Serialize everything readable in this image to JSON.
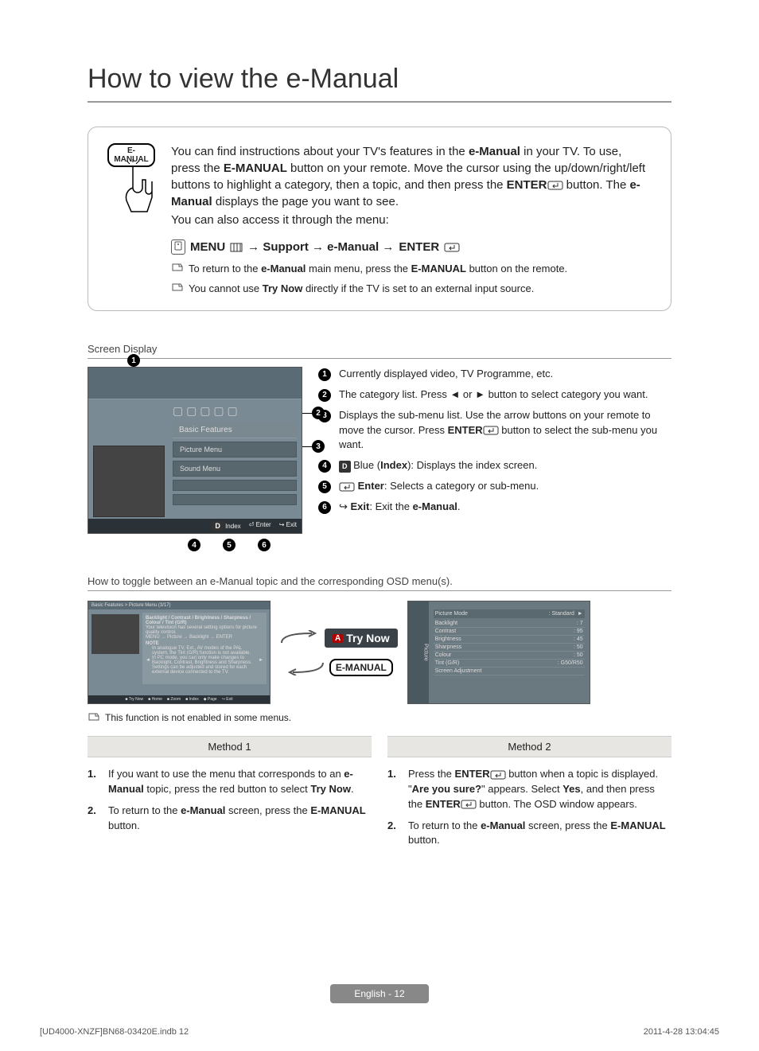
{
  "title": "How to view the e-Manual",
  "remoteBtn": "E-MANUAL",
  "intro": {
    "p1a": "You can find instructions about your TV's features in the ",
    "p1b": "e-Manual",
    "p1c": " in your TV. To use, press the ",
    "p1d": "E-MANUAL",
    "p1e": " button on your remote. Move the cursor using the up/down/right/left buttons to highlight a category, then a topic, and then press the ",
    "p1f": "ENTER",
    "p1g": " button. The ",
    "p1h": "e-Manual",
    "p1i": " displays the page you want to see.",
    "p2": "You can also access it through the menu:"
  },
  "menuPath": {
    "a": "MENU",
    "b": "→ Support → e-Manual → ",
    "c": "ENTER"
  },
  "note1a": "To return to the ",
  "note1b": "e-Manual",
  "note1c": " main menu, press the ",
  "note1d": "E-MANUAL",
  "note1e": " button on the remote.",
  "note2a": "You cannot use ",
  "note2b": "Try Now",
  "note2c": " directly if the TV is set to an external input source.",
  "screenDisplayLabel": "Screen Display",
  "tv": {
    "cat": "Basic Features",
    "sub1": "Picture Menu",
    "sub2": "Sound Menu",
    "ftr1": "Index",
    "ftr2": "Enter",
    "ftr3": "Exit"
  },
  "callouts": {
    "c1": "1",
    "c2": "2",
    "c3": "3",
    "c4": "4",
    "c5": "5",
    "c6": "6"
  },
  "legend": {
    "l1": "Currently displayed video, TV Programme, etc.",
    "l2": "The category list. Press ◄ or ► button to select category you want.",
    "l3a": "Displays the sub-menu list. Use the arrow buttons on your remote to move the cursor. Press ",
    "l3b": "ENTER",
    "l3c": " button to select the sub-menu you want.",
    "l4a": "Blue (",
    "l4b": "Index",
    "l4c": "): Displays the index screen.",
    "l5a": "Enter",
    "l5b": ": Selects a category or sub-menu.",
    "l6a": "Exit",
    "l6b": ": Exit the ",
    "l6c": "e-Manual",
    "l6d": ".",
    "blueD": "D"
  },
  "toggleHeading": "How to toggle between an e-Manual topic and the corresponding OSD menu(s).",
  "miniScreen": {
    "hdr": "Basic Features > Picture Menu (3/17)",
    "line1": "Backlight / Contrast / Brightness / Sharpness / Colour / Tint (G/R)",
    "line2": "Your television has several setting options for picture quality control.",
    "line3": "MENU → Picture → Backlight → ENTER",
    "noteHead": "NOTE",
    "note1": "In analogue TV, Ext., AV modes of the PAL system, the Tint (G/R) function is not available.",
    "note2": "In PC mode, you can only make changes to Backlight, Contrast, Brightness and Sharpness.",
    "note3": "Settings can be adjusted and stored for each external device connected to the TV.",
    "ftr": {
      "a": "Try Now",
      "b": "Home",
      "c": "Zoom",
      "d": "Index",
      "e": "Page",
      "f": "Exit"
    }
  },
  "tryNow": "Try Now",
  "redA": "A",
  "emanualBadge": "E-MANUAL",
  "osd": {
    "side": "Picture",
    "head1": "Picture Mode",
    "head2": ": Standard",
    "arrow": "►",
    "rows": [
      {
        "k": "Backlight",
        "v": ": 7"
      },
      {
        "k": "Contrast",
        "v": ": 95"
      },
      {
        "k": "Brightness",
        "v": ": 45"
      },
      {
        "k": "Sharpness",
        "v": ": 50"
      },
      {
        "k": "Colour",
        "v": ": 50"
      },
      {
        "k": "Tint (G/R)",
        "v": ": G50/R50"
      },
      {
        "k": "Screen Adjustment",
        "v": ""
      }
    ]
  },
  "noteAfter": "This function is not enabled in some menus.",
  "method1": {
    "title": "Method 1",
    "s1a": "If you want to use the menu that corresponds to an ",
    "s1b": "e-Manual",
    "s1c": " topic, press the red button to select ",
    "s1d": "Try Now",
    "s1e": ".",
    "s2a": "To return to the ",
    "s2b": "e-Manual",
    "s2c": " screen, press the ",
    "s2d": "E-MANUAL",
    "s2e": " button."
  },
  "method2": {
    "title": "Method 2",
    "s1a": "Press the ",
    "s1b": "ENTER",
    "s1c": " button when a topic is displayed. \"",
    "s1d": "Are you sure?",
    "s1e": "\" appears. Select ",
    "s1f": "Yes",
    "s1g": ", and then press the ",
    "s1h": "ENTER",
    "s1i": " button. The OSD window appears.",
    "s2a": "To return to the ",
    "s2b": "e-Manual",
    "s2c": " screen, press the ",
    "s2d": "E-MANUAL",
    "s2e": " button."
  },
  "footer": "English - 12",
  "meta": {
    "left": "[UD4000-XNZF]BN68-03420E.indb   12",
    "right": "2011-4-28   13:04:45"
  }
}
